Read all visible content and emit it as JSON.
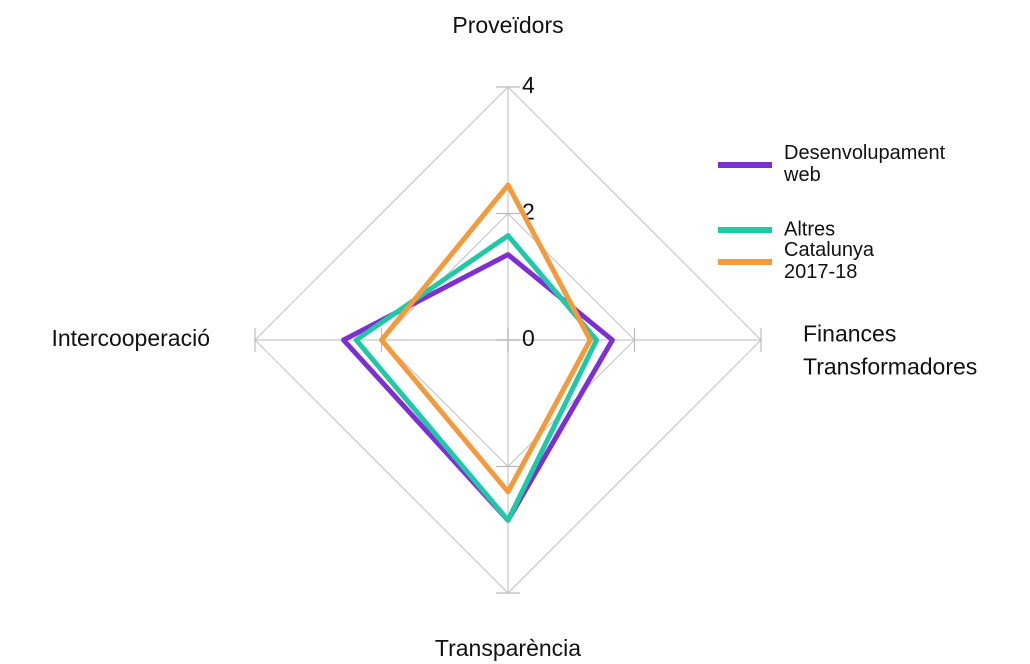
{
  "chart_data": {
    "type": "radar",
    "categories": [
      "Proveïdors",
      "Finances Transformadores",
      "Transparència",
      "Intercooperació"
    ],
    "series": [
      {
        "name": "Desenvolupament web",
        "color": "#7e2fd4",
        "values": [
          1.35,
          1.65,
          2.85,
          2.6
        ]
      },
      {
        "name": "Altres",
        "color": "#20c9a6",
        "values": [
          1.65,
          1.4,
          2.85,
          2.4
        ]
      },
      {
        "name": "Catalunya 2017-18",
        "color": "#f39a3c",
        "values": [
          2.45,
          1.3,
          2.4,
          2.0
        ]
      }
    ],
    "rlim": [
      0,
      4
    ],
    "rticks": [
      0,
      2,
      4
    ],
    "grid": true,
    "legend": "right"
  }
}
